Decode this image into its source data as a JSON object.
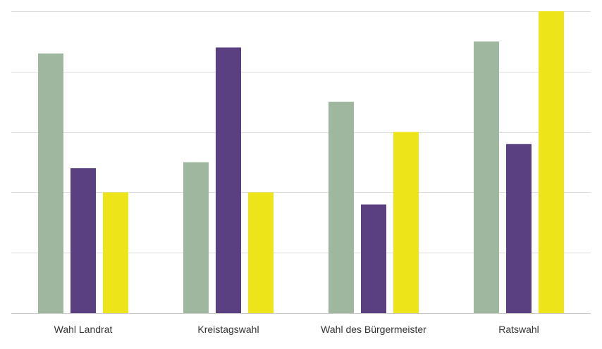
{
  "chart_data": {
    "type": "bar",
    "categories": [
      "Wahl Landrat",
      "Kreistagswahl",
      "Wahl des Bürgermeister",
      "Ratswahl"
    ],
    "series": [
      {
        "values": [
          4.3,
          2.5,
          3.5,
          4.5
        ],
        "color": "#9fb79e"
      },
      {
        "values": [
          2.4,
          4.4,
          1.8,
          2.8
        ],
        "color": "#5a4081"
      },
      {
        "values": [
          2.0,
          2.0,
          3.0,
          5.0
        ],
        "color": "#ede41a"
      }
    ],
    "ylim": [
      0,
      5
    ],
    "grid": true,
    "legend": "none",
    "title": "",
    "xlabel": "",
    "ylabel": ""
  }
}
